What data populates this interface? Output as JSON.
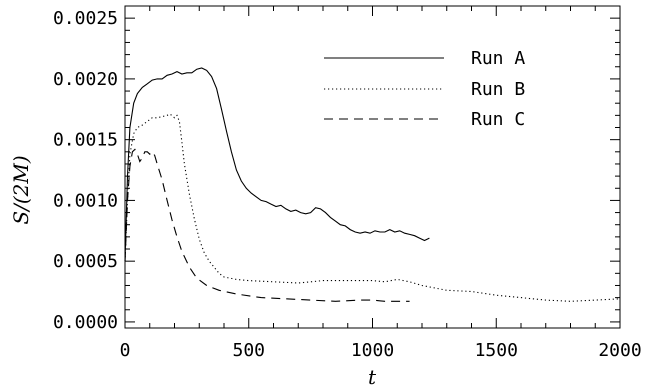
{
  "chart_data": {
    "type": "line",
    "xlabel": "t",
    "ylabel": "S/(2M)",
    "xlim": [
      0,
      2000
    ],
    "ylim": [
      -5e-05,
      0.0026
    ],
    "xticks": [
      "0",
      "500",
      "1000",
      "1500",
      "2000"
    ],
    "yticks": [
      "0.0000",
      "0.0005",
      "0.0010",
      "0.0015",
      "0.0020",
      "0.0025"
    ],
    "legend_position": "top-right",
    "grid": false,
    "series": [
      {
        "name": "Run A",
        "line_style": "solid",
        "x": [
          0,
          10,
          20,
          35,
          50,
          70,
          90,
          110,
          130,
          150,
          170,
          190,
          210,
          230,
          250,
          270,
          290,
          310,
          330,
          350,
          370,
          390,
          410,
          430,
          450,
          470,
          490,
          510,
          530,
          550,
          570,
          590,
          610,
          630,
          650,
          670,
          690,
          710,
          730,
          750,
          770,
          790,
          810,
          830,
          850,
          870,
          890,
          910,
          930,
          950,
          970,
          990,
          1010,
          1030,
          1050,
          1070,
          1090,
          1110,
          1130,
          1150,
          1170,
          1190,
          1210,
          1230
        ],
        "y": [
          0.0005,
          0.0012,
          0.0016,
          0.0018,
          0.00188,
          0.00193,
          0.00196,
          0.00199,
          0.002,
          0.002,
          0.00203,
          0.00204,
          0.00206,
          0.00204,
          0.00205,
          0.00205,
          0.00208,
          0.00209,
          0.00207,
          0.00202,
          0.00192,
          0.00175,
          0.00157,
          0.0014,
          0.00125,
          0.00116,
          0.0011,
          0.00106,
          0.00103,
          0.001,
          0.00099,
          0.00097,
          0.00095,
          0.00096,
          0.00093,
          0.00091,
          0.00092,
          0.0009,
          0.00089,
          0.0009,
          0.00094,
          0.00093,
          0.0009,
          0.00086,
          0.00083,
          0.0008,
          0.00079,
          0.00076,
          0.00074,
          0.00073,
          0.00074,
          0.00073,
          0.00075,
          0.00074,
          0.00074,
          0.00076,
          0.00074,
          0.00075,
          0.00073,
          0.00072,
          0.00071,
          0.00069,
          0.00067,
          0.00069
        ]
      },
      {
        "name": "Run B",
        "line_style": "dotted",
        "x": [
          0,
          10,
          20,
          35,
          50,
          70,
          90,
          110,
          130,
          150,
          170,
          180,
          190,
          200,
          210,
          220,
          230,
          240,
          260,
          280,
          300,
          320,
          340,
          360,
          380,
          400,
          450,
          500,
          600,
          700,
          800,
          900,
          1000,
          1050,
          1100,
          1150,
          1200,
          1300,
          1400,
          1500,
          1600,
          1700,
          1800,
          1900,
          2000
        ],
        "y": [
          0.0005,
          0.001,
          0.00138,
          0.00155,
          0.0016,
          0.00162,
          0.00165,
          0.00168,
          0.00168,
          0.00169,
          0.0017,
          0.00171,
          0.0017,
          0.00168,
          0.0017,
          0.00165,
          0.00148,
          0.0013,
          0.00105,
          0.00085,
          0.00068,
          0.00057,
          0.0005,
          0.00045,
          0.0004,
          0.00037,
          0.00035,
          0.00034,
          0.00033,
          0.00032,
          0.00034,
          0.00034,
          0.00034,
          0.00033,
          0.00035,
          0.00033,
          0.0003,
          0.00026,
          0.00025,
          0.00022,
          0.0002,
          0.00018,
          0.00017,
          0.00018,
          0.00019
        ]
      },
      {
        "name": "Run C",
        "line_style": "dashed",
        "x": [
          0,
          10,
          20,
          30,
          40,
          50,
          60,
          70,
          80,
          90,
          100,
          110,
          120,
          130,
          150,
          170,
          190,
          210,
          230,
          260,
          290,
          330,
          380,
          450,
          550,
          650,
          750,
          850,
          950,
          1000,
          1050,
          1100,
          1150
        ],
        "y": [
          0.0005,
          0.001,
          0.00128,
          0.0014,
          0.00142,
          0.00138,
          0.00132,
          0.00135,
          0.0014,
          0.0014,
          0.00138,
          0.0014,
          0.00137,
          0.0013,
          0.00117,
          0.001,
          0.00084,
          0.0007,
          0.00058,
          0.00045,
          0.00036,
          0.0003,
          0.00026,
          0.00023,
          0.0002,
          0.00019,
          0.00018,
          0.00017,
          0.00018,
          0.00018,
          0.00017,
          0.00017,
          0.00017
        ]
      }
    ]
  }
}
